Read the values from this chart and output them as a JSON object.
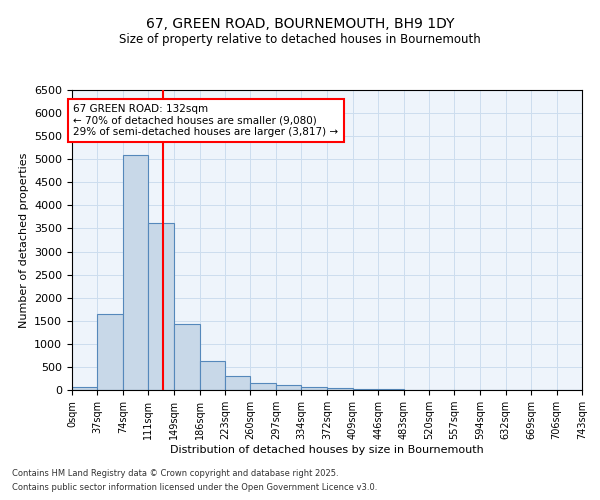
{
  "title": "67, GREEN ROAD, BOURNEMOUTH, BH9 1DY",
  "subtitle": "Size of property relative to detached houses in Bournemouth",
  "xlabel": "Distribution of detached houses by size in Bournemouth",
  "ylabel": "Number of detached properties",
  "bar_edges": [
    0,
    37,
    74,
    111,
    149,
    186,
    223,
    260,
    297,
    334,
    372,
    409,
    446,
    483,
    520,
    557,
    594,
    632,
    669,
    706,
    743
  ],
  "bar_heights": [
    75,
    1650,
    5100,
    3620,
    1430,
    620,
    310,
    145,
    100,
    65,
    40,
    30,
    20,
    10,
    5,
    3,
    2,
    1,
    1,
    0
  ],
  "bar_color": "#c8d8e8",
  "bar_edge_color": "#5588bb",
  "bar_linewidth": 0.8,
  "red_line_x": 132,
  "ylim": [
    0,
    6500
  ],
  "yticks": [
    0,
    500,
    1000,
    1500,
    2000,
    2500,
    3000,
    3500,
    4000,
    4500,
    5000,
    5500,
    6000,
    6500
  ],
  "annotation_text": "67 GREEN ROAD: 132sqm\n← 70% of detached houses are smaller (9,080)\n29% of semi-detached houses are larger (3,817) →",
  "grid_color": "#ccddee",
  "bg_color": "#eef4fb",
  "footnote1": "Contains HM Land Registry data © Crown copyright and database right 2025.",
  "footnote2": "Contains public sector information licensed under the Open Government Licence v3.0.",
  "tick_labels": [
    "0sqm",
    "37sqm",
    "74sqm",
    "111sqm",
    "149sqm",
    "186sqm",
    "223sqm",
    "260sqm",
    "297sqm",
    "334sqm",
    "372sqm",
    "409sqm",
    "446sqm",
    "483sqm",
    "520sqm",
    "557sqm",
    "594sqm",
    "632sqm",
    "669sqm",
    "706sqm",
    "743sqm"
  ]
}
